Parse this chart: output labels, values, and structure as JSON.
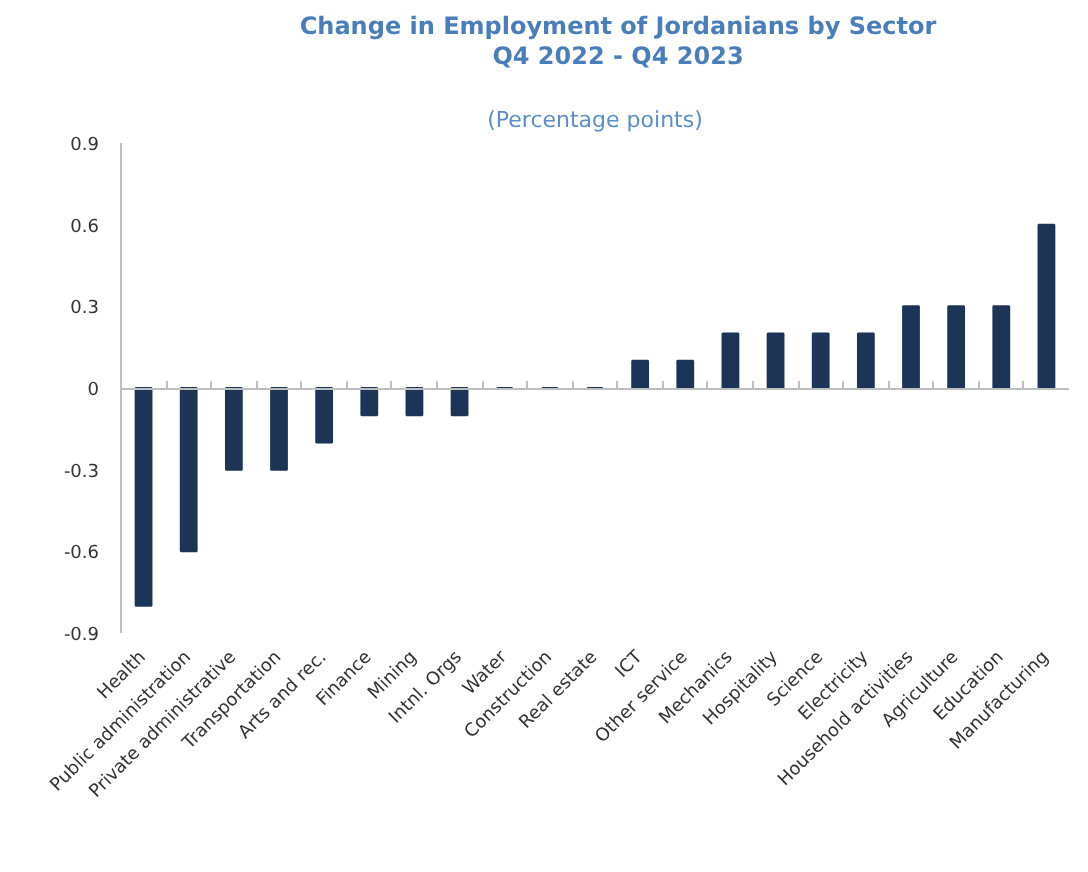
{
  "chart_data": {
    "type": "bar",
    "title": "Change in Employment of Jordanians by Sector\nQ4 2022 - Q4 2023",
    "subtitle": "(Percentage points)",
    "categories": [
      "Health",
      "Public administration",
      "Private administrative",
      "Transportation",
      "Arts and rec.",
      "Finance",
      "Mining",
      "Intnl. Orgs",
      "Water",
      "Construction",
      "Real estate",
      "ICT",
      "Other service",
      "Mechanics",
      "Hospitality",
      "Science",
      "Electricity",
      "Household activities",
      "Agriculture",
      "Education",
      "Manufacturing"
    ],
    "values": [
      -0.8,
      -0.6,
      -0.3,
      -0.3,
      -0.2,
      -0.1,
      -0.1,
      -0.1,
      0,
      0,
      0,
      0.1,
      0.1,
      0.2,
      0.2,
      0.2,
      0.2,
      0.3,
      0.3,
      0.3,
      0.6
    ],
    "color": "#1c3557",
    "ylim": [
      -0.9,
      0.9
    ],
    "yticks": [
      -0.9,
      -0.6,
      -0.3,
      0,
      0.3,
      0.6,
      0.9
    ]
  }
}
